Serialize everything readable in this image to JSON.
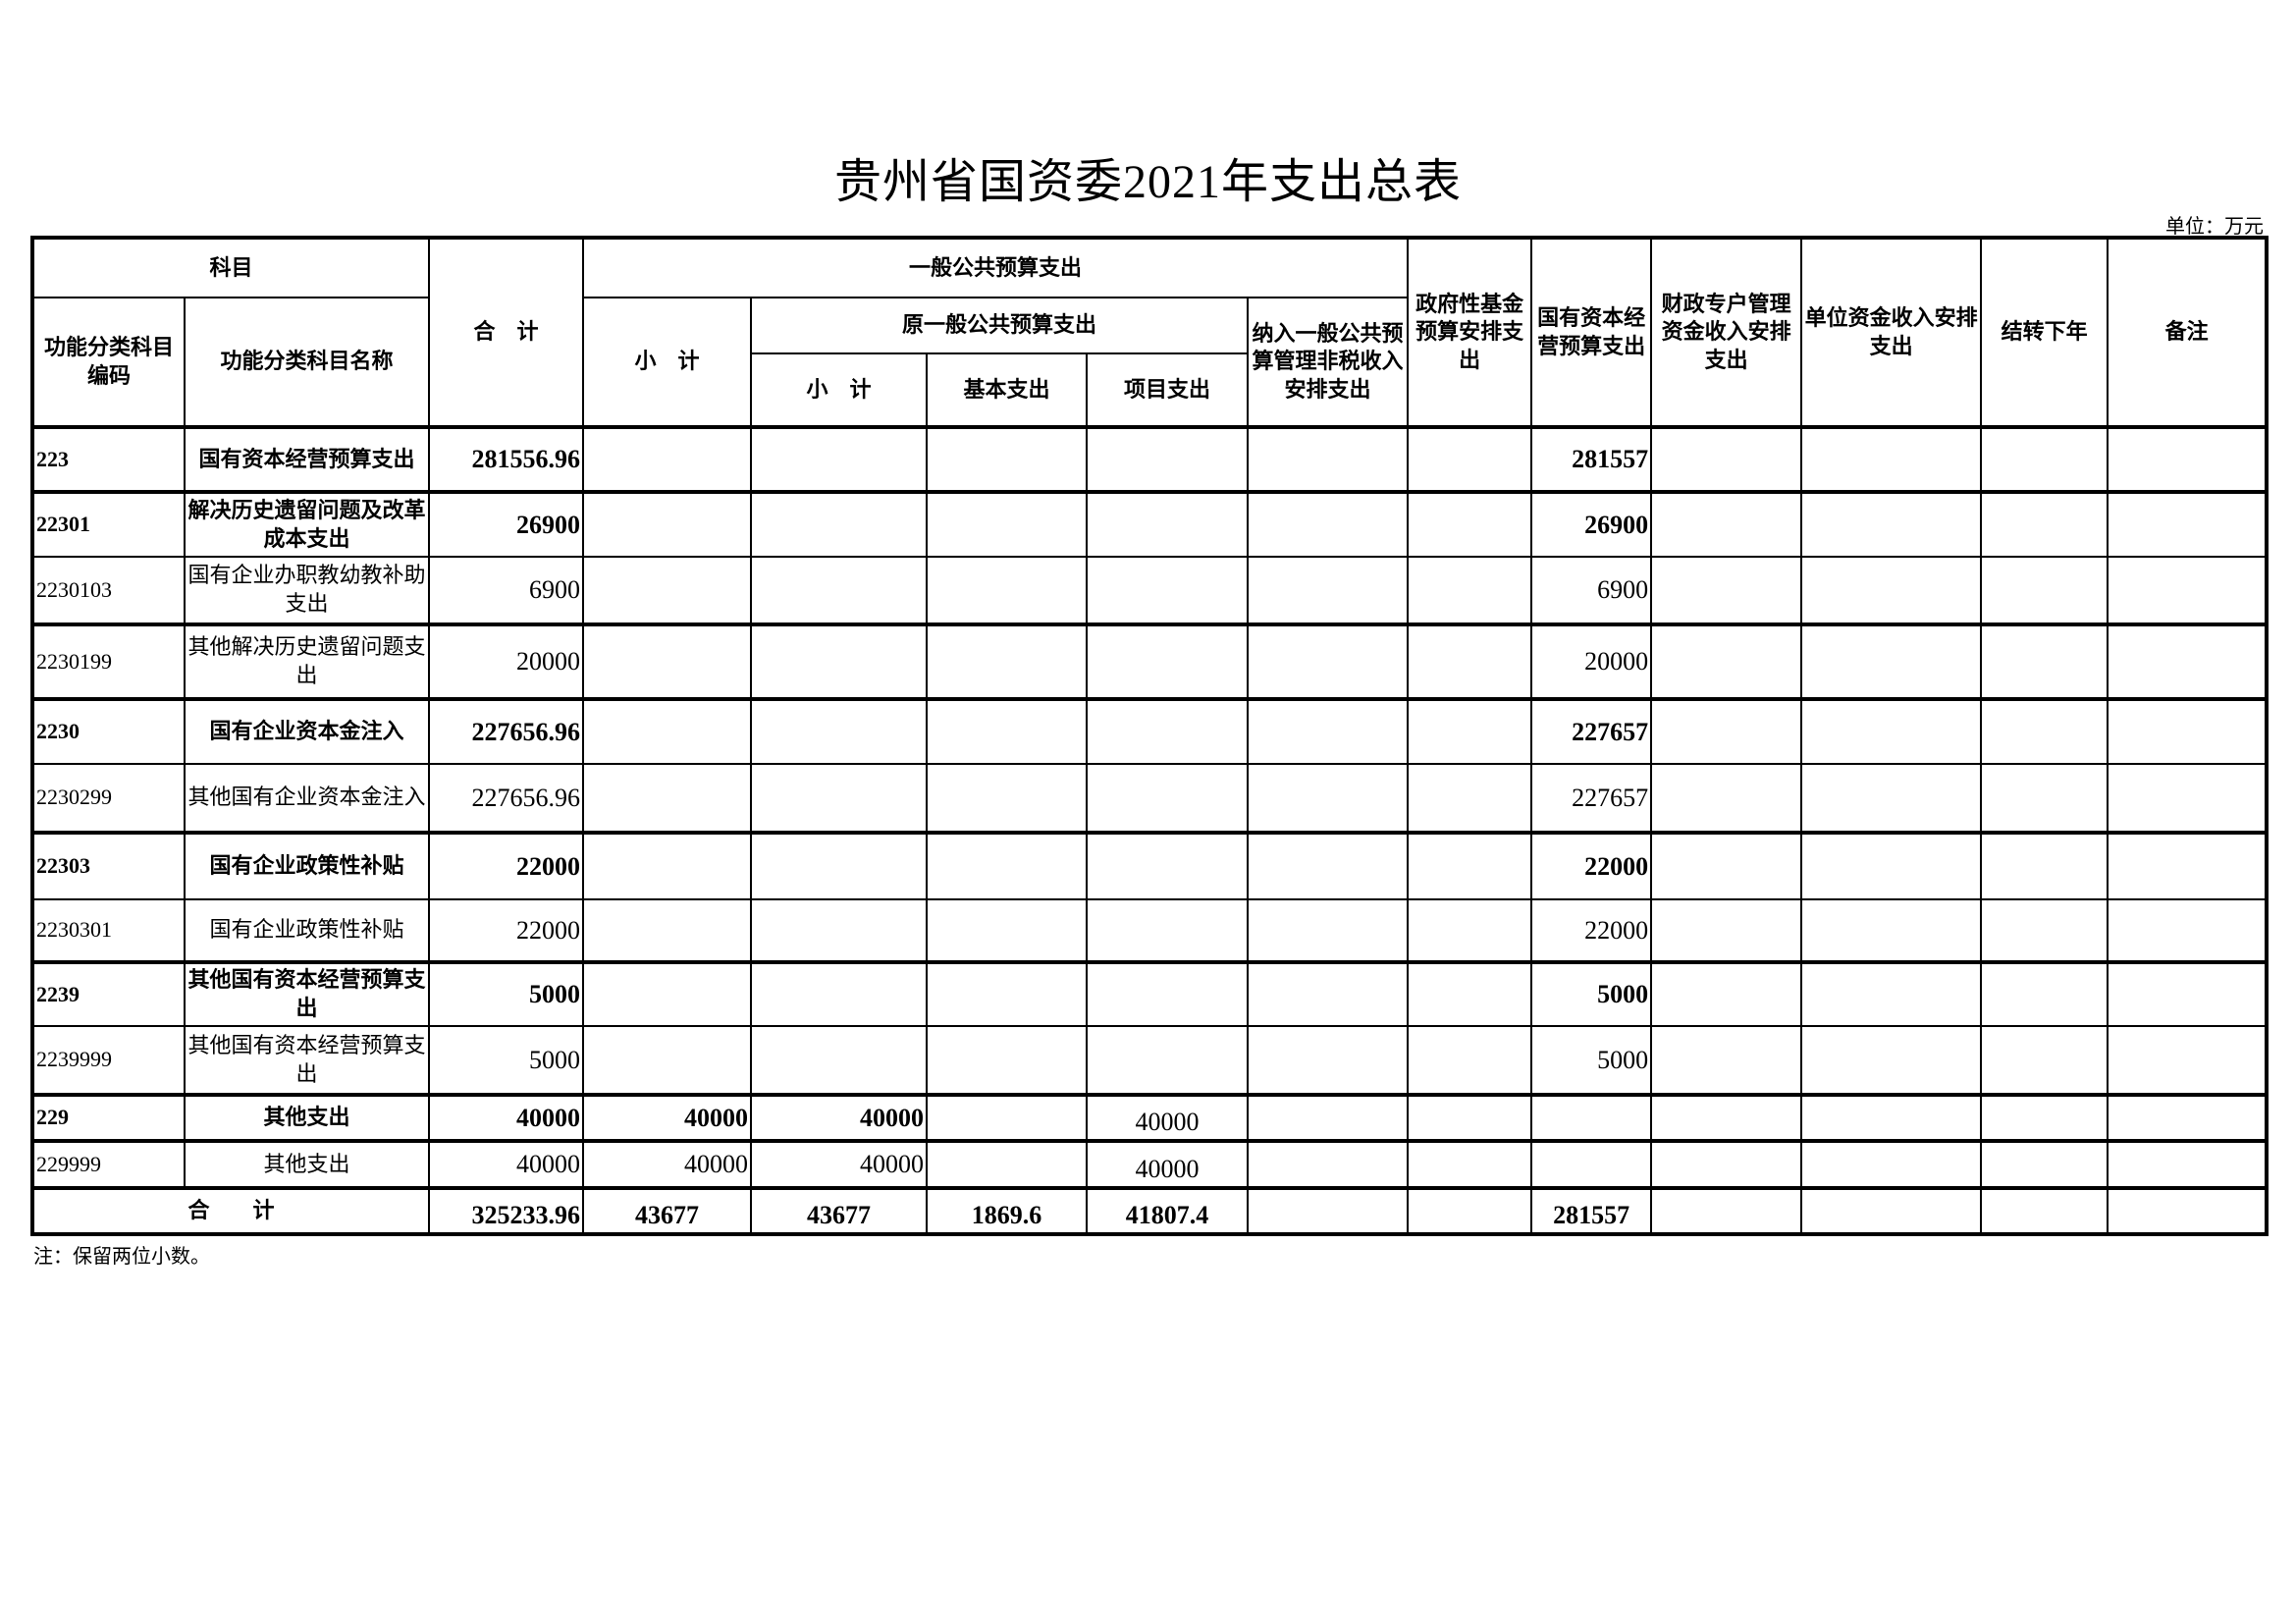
{
  "title": "贵州省国资委2021年支出总表",
  "unit": "单位：万元",
  "note": "注：保留两位小数。",
  "headers": {
    "subject": "科目",
    "code": "功能分类科目编码",
    "name": "功能分类科目名称",
    "total": "合　计",
    "general": "一般公共预算支出",
    "gen_subtotal": "小　计",
    "orig": "原一般公共预算支出",
    "orig_subtotal": "小　计",
    "basic": "基本支出",
    "project": "项目支出",
    "nontax": "纳入一般公共预算管理非税收入安排支出",
    "govfund": "政府性基金预算安排支出",
    "soe": "国有资本经营预算支出",
    "special": "财政专户管理资金收入安排支出",
    "unitfund": "单位资金收入安排支出",
    "carry": "结转下年",
    "remark": "备注"
  },
  "rows": [
    {
      "code": "223",
      "name": "国有资本经营预算支出",
      "total": "281556.96",
      "gen_subtotal": "",
      "orig_subtotal": "",
      "basic": "",
      "project": "",
      "nontax": "",
      "govfund": "",
      "soe": "281557",
      "special": "",
      "unitfund": "",
      "carry": "",
      "remark": ""
    },
    {
      "code": "22301",
      "name": "解决历史遗留问题及改革成本支出",
      "total": "26900",
      "gen_subtotal": "",
      "orig_subtotal": "",
      "basic": "",
      "project": "",
      "nontax": "",
      "govfund": "",
      "soe": "26900",
      "special": "",
      "unitfund": "",
      "carry": "",
      "remark": ""
    },
    {
      "code": "2230103",
      "name": "国有企业办职教幼教补助支出",
      "total": "6900",
      "gen_subtotal": "",
      "orig_subtotal": "",
      "basic": "",
      "project": "",
      "nontax": "",
      "govfund": "",
      "soe": "6900",
      "special": "",
      "unitfund": "",
      "carry": "",
      "remark": ""
    },
    {
      "code": "2230199",
      "name": "其他解决历史遗留问题支出",
      "total": "20000",
      "gen_subtotal": "",
      "orig_subtotal": "",
      "basic": "",
      "project": "",
      "nontax": "",
      "govfund": "",
      "soe": "20000",
      "special": "",
      "unitfund": "",
      "carry": "",
      "remark": ""
    },
    {
      "code": "2230",
      "name": "国有企业资本金注入",
      "total": "227656.96",
      "gen_subtotal": "",
      "orig_subtotal": "",
      "basic": "",
      "project": "",
      "nontax": "",
      "govfund": "",
      "soe": "227657",
      "special": "",
      "unitfund": "",
      "carry": "",
      "remark": ""
    },
    {
      "code": "2230299",
      "name": "其他国有企业资本金注入",
      "total": "227656.96",
      "gen_subtotal": "",
      "orig_subtotal": "",
      "basic": "",
      "project": "",
      "nontax": "",
      "govfund": "",
      "soe": "227657",
      "special": "",
      "unitfund": "",
      "carry": "",
      "remark": ""
    },
    {
      "code": "22303",
      "name": "国有企业政策性补贴",
      "total": "22000",
      "gen_subtotal": "",
      "orig_subtotal": "",
      "basic": "",
      "project": "",
      "nontax": "",
      "govfund": "",
      "soe": "22000",
      "special": "",
      "unitfund": "",
      "carry": "",
      "remark": ""
    },
    {
      "code": "2230301",
      "name": "国有企业政策性补贴",
      "total": "22000",
      "gen_subtotal": "",
      "orig_subtotal": "",
      "basic": "",
      "project": "",
      "nontax": "",
      "govfund": "",
      "soe": "22000",
      "special": "",
      "unitfund": "",
      "carry": "",
      "remark": ""
    },
    {
      "code": "2239",
      "name": "其他国有资本经营预算支出",
      "total": "5000",
      "gen_subtotal": "",
      "orig_subtotal": "",
      "basic": "",
      "project": "",
      "nontax": "",
      "govfund": "",
      "soe": "5000",
      "special": "",
      "unitfund": "",
      "carry": "",
      "remark": ""
    },
    {
      "code": "2239999",
      "name": "其他国有资本经营预算支出",
      "total": "5000",
      "gen_subtotal": "",
      "orig_subtotal": "",
      "basic": "",
      "project": "",
      "nontax": "",
      "govfund": "",
      "soe": "5000",
      "special": "",
      "unitfund": "",
      "carry": "",
      "remark": ""
    },
    {
      "code": "229",
      "name": "其他支出",
      "total": "40000",
      "gen_subtotal": "40000",
      "orig_subtotal": "40000",
      "basic": "",
      "project": "40000",
      "nontax": "",
      "govfund": "",
      "soe": "",
      "special": "",
      "unitfund": "",
      "carry": "",
      "remark": ""
    },
    {
      "code": "229999",
      "name": "其他支出",
      "total": "40000",
      "gen_subtotal": "40000",
      "orig_subtotal": "40000",
      "basic": "",
      "project": "40000",
      "nontax": "",
      "govfund": "",
      "soe": "",
      "special": "",
      "unitfund": "",
      "carry": "",
      "remark": ""
    }
  ],
  "totals": {
    "label": "合　　计",
    "total": "325233.96",
    "gen_subtotal": "43677",
    "orig_subtotal": "43677",
    "basic": "1869.6",
    "project": "41807.4",
    "nontax": "",
    "govfund": "",
    "soe": "281557",
    "special": "",
    "unitfund": "",
    "carry": "",
    "remark": ""
  }
}
